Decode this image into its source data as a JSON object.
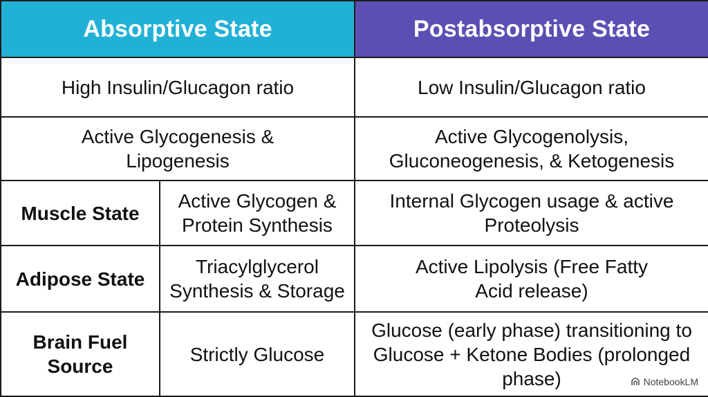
{
  "headers": {
    "absorptive": "Absorptive State",
    "postabsorptive": "Postabsorptive State"
  },
  "colors": {
    "absorptive_header": "#22b1d6",
    "postabsorptive_header": "#5b4fb3",
    "header_text": "#ffffff",
    "grid": "#1a1a1a"
  },
  "rows": {
    "hormone": {
      "absorptive": "High Insulin/Glucagon ratio",
      "postabsorptive": "Low Insulin/Glucagon ratio"
    },
    "liver": {
      "absorptive": "Active Glycogenesis & Lipogenesis",
      "postabsorptive": "Active Glycogenolysis, Gluconeogenesis, & Ketogenesis"
    },
    "muscle": {
      "label": "Muscle State",
      "absorptive": "Active Glycogen & Protein Synthesis",
      "postabsorptive": "Internal Glycogen usage & active Proteolysis"
    },
    "adipose": {
      "label": "Adipose State",
      "absorptive": "Triacylglycerol Synthesis & Storage",
      "postabsorptive": "Active Lipolysis (Free Fatty Acid release)"
    },
    "brain": {
      "label": "Brain Fuel Source",
      "absorptive": "Strictly Glucose",
      "postabsorptive": "Glucose (early phase) transitioning to Glucose + Ketone Bodies (prolonged phase)"
    }
  },
  "watermark": {
    "text": "NotebookLM",
    "icon": "notebooklm-logo-icon"
  }
}
